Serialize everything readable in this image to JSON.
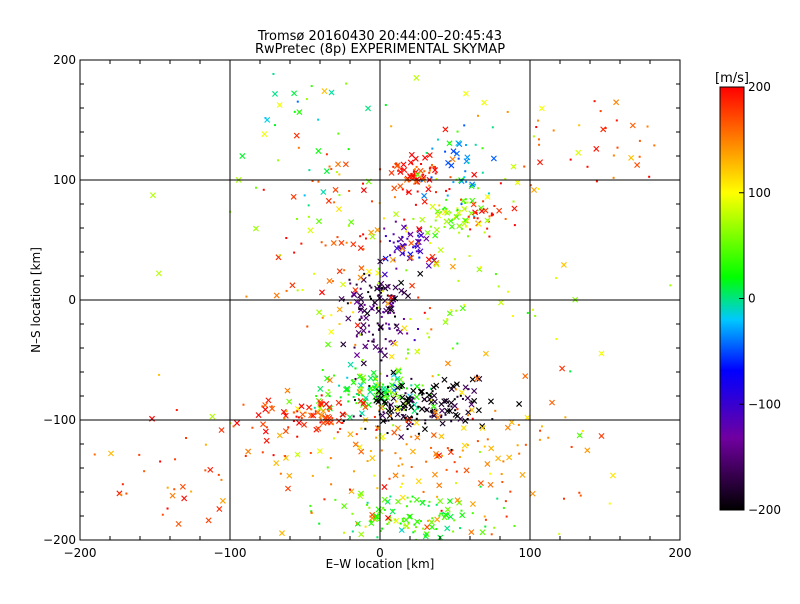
{
  "chart_data": {
    "type": "scatter",
    "title": "Tromsø 20160430 20:44:00–20:45:43",
    "subtitle": "RwPretec (8p) EXPERIMENTAL SKYMAP",
    "xlabel": "E–W location [km]",
    "ylabel": "N–S location [km]",
    "xlim": [
      -200,
      200
    ],
    "ylim": [
      -200,
      200
    ],
    "x_ticks": [
      "−200",
      "−100",
      "0",
      "100",
      "200"
    ],
    "y_ticks": [
      "−200",
      "−100",
      "0",
      "100",
      "200"
    ],
    "grid": true,
    "colorbar": {
      "label": "[m/s]",
      "min": -200,
      "max": 200,
      "ticks": [
        "200",
        "100",
        "0",
        "−100",
        "−200"
      ],
      "colors": [
        "#000000",
        "#7000a0",
        "#0000ff",
        "#00c8ff",
        "#00ff00",
        "#ffff00",
        "#ff0000"
      ]
    },
    "clusters": [
      {
        "cx": 25,
        "cy": 105,
        "sx": 10,
        "sy": 8,
        "n": 70,
        "vel": 190
      },
      {
        "cx": 15,
        "cy": 45,
        "sx": 9,
        "sy": 9,
        "n": 50,
        "vel": -110
      },
      {
        "cx": 50,
        "cy": 70,
        "sx": 10,
        "sy": 8,
        "n": 45,
        "vel": 60
      },
      {
        "cx": 55,
        "cy": 110,
        "sx": 14,
        "sy": 18,
        "n": 40,
        "vel": -30
      },
      {
        "cx": 70,
        "cy": 70,
        "sx": 8,
        "sy": 8,
        "n": 25,
        "vel": 190
      },
      {
        "cx": 0,
        "cy": 5,
        "sx": 10,
        "sy": 10,
        "n": 70,
        "vel": -170
      },
      {
        "cx": -5,
        "cy": -25,
        "sx": 12,
        "sy": 12,
        "n": 60,
        "vel": -150
      },
      {
        "cx": -5,
        "cy": -75,
        "sx": 18,
        "sy": 9,
        "n": 110,
        "vel": 20
      },
      {
        "cx": 25,
        "cy": -90,
        "sx": 22,
        "sy": 12,
        "n": 160,
        "vel": -195
      },
      {
        "cx": -45,
        "cy": -95,
        "sx": 20,
        "sy": 9,
        "n": 80,
        "vel": 180
      },
      {
        "cx": 20,
        "cy": -180,
        "sx": 25,
        "sy": 12,
        "n": 110,
        "vel": 40
      },
      {
        "cx": 30,
        "cy": -130,
        "sx": 55,
        "sy": 30,
        "n": 150,
        "vel": 150
      },
      {
        "cx": -20,
        "cy": 50,
        "sx": 30,
        "sy": 40,
        "n": 80,
        "vel": 170
      },
      {
        "cx": 20,
        "cy": 0,
        "sx": 70,
        "sy": 110,
        "n": 170,
        "vel": 80
      },
      {
        "cx": -120,
        "cy": -150,
        "sx": 40,
        "sy": 30,
        "n": 40,
        "vel": 170
      },
      {
        "cx": 140,
        "cy": 130,
        "sx": 35,
        "sy": 20,
        "n": 40,
        "vel": 170
      },
      {
        "cx": -50,
        "cy": 150,
        "sx": 25,
        "sy": 25,
        "n": 25,
        "vel": 10
      }
    ]
  }
}
